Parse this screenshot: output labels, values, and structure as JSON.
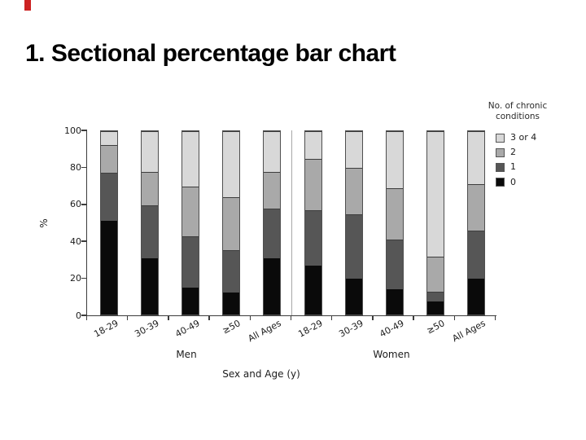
{
  "slide": {
    "title": "1. Sectional percentage bar chart",
    "accent_color": "#cc2222"
  },
  "chart_data": {
    "type": "bar",
    "variant": "stacked-percentage",
    "ylabel": "%",
    "xlabel": "Sex and Age (y)",
    "ylim": [
      0,
      100
    ],
    "yticks": [
      0,
      20,
      40,
      60,
      80,
      100
    ],
    "grid": false,
    "group_separator": true,
    "groups": [
      {
        "label": "Men",
        "categories": [
          "18-29",
          "30-39",
          "40-49",
          "≥50",
          "All Ages"
        ]
      },
      {
        "label": "Women",
        "categories": [
          "18-29",
          "30-39",
          "40-49",
          "≥50",
          "All Ages"
        ]
      }
    ],
    "series": [
      {
        "name": "0",
        "color": "#0a0a0a",
        "values": [
          52,
          31,
          15,
          12,
          31,
          27,
          20,
          14,
          7,
          20
        ]
      },
      {
        "name": "1",
        "color": "#565656",
        "values": [
          26,
          29,
          28,
          23,
          27,
          30,
          35,
          27,
          5,
          26
        ]
      },
      {
        "name": "2",
        "color": "#a9a9a9",
        "values": [
          15,
          18,
          27,
          29,
          20,
          28,
          25,
          28,
          19,
          25
        ]
      },
      {
        "name": "3 or 4",
        "color": "#d8d8d8",
        "values": [
          7,
          22,
          30,
          36,
          22,
          15,
          20,
          31,
          69,
          29
        ]
      }
    ],
    "legend": {
      "title_lines": [
        "No. of chronic",
        "conditions"
      ],
      "entries": [
        "3 or 4",
        "2",
        "1",
        "0"
      ],
      "position": "upper-right"
    }
  }
}
